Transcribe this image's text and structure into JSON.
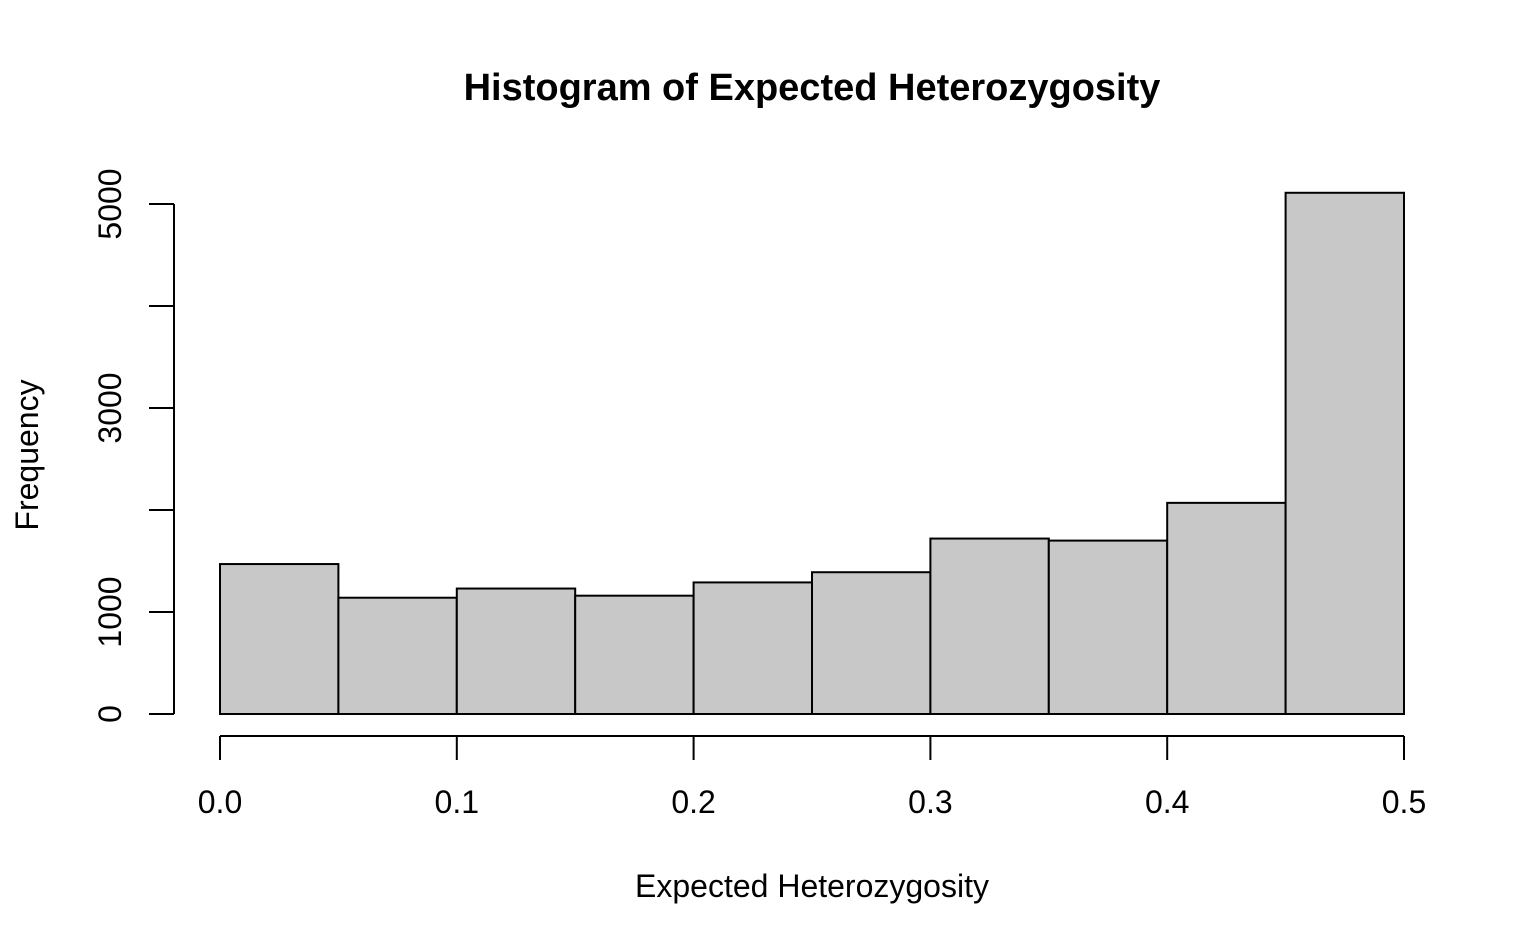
{
  "chart_data": {
    "type": "bar",
    "title": "Histogram of Expected Heterozygosity",
    "xlabel": "Expected Heterozygosity",
    "ylabel": "Frequency",
    "bin_edges": [
      0.0,
      0.05,
      0.1,
      0.15,
      0.2,
      0.25,
      0.3,
      0.35,
      0.4,
      0.45,
      0.5
    ],
    "values": [
      1470,
      1140,
      1230,
      1160,
      1290,
      1390,
      1720,
      1700,
      2070,
      5110
    ],
    "xlim": [
      0.0,
      0.5
    ],
    "ylim": [
      0,
      5110
    ],
    "x_ticks": [
      0.0,
      0.1,
      0.2,
      0.3,
      0.4,
      0.5
    ],
    "x_tick_labels": [
      "0.0",
      "0.1",
      "0.2",
      "0.3",
      "0.4",
      "0.5"
    ],
    "y_ticks": [
      0,
      1000,
      2000,
      3000,
      4000,
      5000
    ],
    "y_tick_labels": [
      "0",
      "1000",
      "",
      "3000",
      "",
      "5000"
    ],
    "grid": false,
    "legend": "none",
    "bar_fill": "#c8c8c8",
    "bar_stroke": "#000000"
  }
}
